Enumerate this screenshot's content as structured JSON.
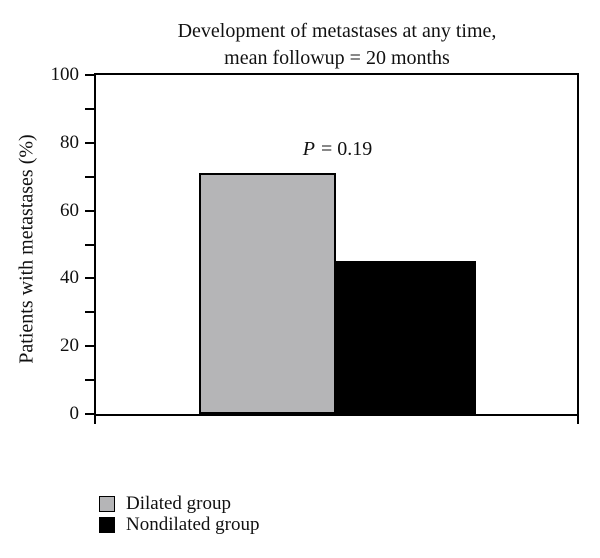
{
  "chart_data": {
    "type": "bar",
    "title_lines": [
      "Development of metastases at any time,",
      "mean followup = 20 months"
    ],
    "ylabel": "Patients with metastases (%)",
    "ylim": [
      0,
      100
    ],
    "yticks_major": [
      0,
      20,
      40,
      60,
      80,
      100
    ],
    "yticks_minor": [
      10,
      30,
      50,
      70,
      90
    ],
    "grid": false,
    "categories": [
      "Dilated group",
      "Nondilated group"
    ],
    "values": [
      71,
      45
    ],
    "bar_colors": [
      "#b5b5b7",
      "#000000"
    ],
    "bar_border_color": "#000000",
    "annotation": {
      "symbol": "P",
      "rest": "= 0.19"
    },
    "legend": {
      "position": "bottom-left",
      "entries": [
        {
          "label": "Dilated group",
          "color": "#b5b5b7"
        },
        {
          "label": "Nondilated group",
          "color": "#000000"
        }
      ]
    }
  }
}
